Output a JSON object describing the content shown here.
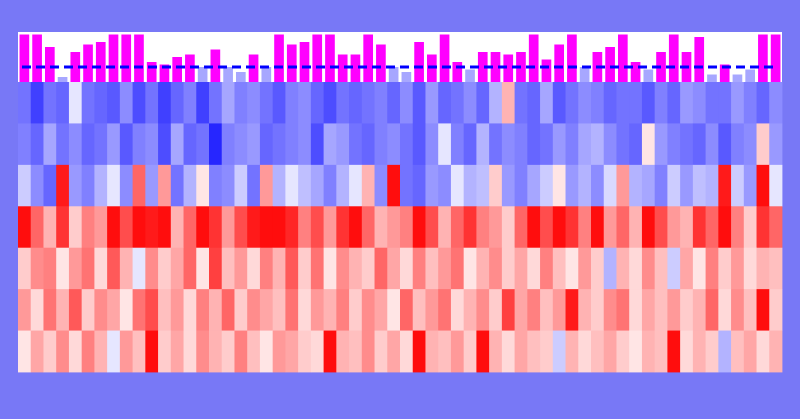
{
  "chart_data": [
    {
      "type": "bar",
      "title": "",
      "xlabel": "",
      "ylabel": "",
      "ylim": [
        0,
        1
      ],
      "grid": false,
      "legend": "none",
      "categories_count": 60,
      "values": [
        0.95,
        0.95,
        0.7,
        0.1,
        0.6,
        0.75,
        0.8,
        0.95,
        0.95,
        0.95,
        0.4,
        0.35,
        0.5,
        0.55,
        0.3,
        0.65,
        0.3,
        0.2,
        0.55,
        0.3,
        0.95,
        0.75,
        0.8,
        0.95,
        0.95,
        0.55,
        0.55,
        0.95,
        0.75,
        0.3,
        0.2,
        0.8,
        0.55,
        0.95,
        0.4,
        0.25,
        0.6,
        0.6,
        0.55,
        0.6,
        0.95,
        0.45,
        0.75,
        0.95,
        0.3,
        0.6,
        0.7,
        0.95,
        0.4,
        0.25,
        0.6,
        0.95,
        0.6,
        0.9,
        0.15,
        0.35,
        0.15,
        0.25,
        0.95,
        0.95
      ],
      "reference_line": 0.3,
      "colors": {
        "above": "#ff00ff",
        "below": "#a7a7ff",
        "line": "#0000ff",
        "background": "#ffffff"
      }
    },
    {
      "type": "heatmap",
      "title": "",
      "xlabel": "",
      "ylabel": "",
      "rows": 7,
      "cols": 60,
      "value_range": [
        -1,
        1
      ],
      "colormap": {
        "low": "#0000ff",
        "mid": "#ffffff",
        "high": "#ff0000"
      },
      "values": [
        [
          -0.55,
          -0.75,
          -0.55,
          -0.6,
          -0.1,
          -0.55,
          -0.6,
          -0.65,
          -0.45,
          -0.7,
          -0.55,
          -0.75,
          -0.6,
          -0.5,
          -0.75,
          -0.55,
          -0.35,
          -0.5,
          -0.45,
          -0.55,
          -0.65,
          -0.5,
          -0.45,
          -0.6,
          -0.7,
          -0.55,
          -0.6,
          -0.55,
          -0.5,
          -0.6,
          -0.45,
          -0.65,
          -0.4,
          -0.6,
          -0.55,
          -0.45,
          -0.6,
          -0.3,
          0.3,
          -0.55,
          -0.6,
          -0.35,
          -0.65,
          -0.55,
          -0.45,
          -0.5,
          -0.6,
          -0.55,
          -0.55,
          -0.65,
          -0.5,
          -0.6,
          -0.4,
          -0.45,
          -0.55,
          -0.55,
          -0.4,
          -0.5,
          -0.6,
          -0.45
        ],
        [
          -0.5,
          -0.6,
          -0.35,
          -0.55,
          -0.45,
          -0.6,
          -0.55,
          -0.4,
          -0.65,
          -0.5,
          -0.45,
          -0.7,
          -0.35,
          -0.6,
          -0.55,
          -0.85,
          -0.5,
          -0.45,
          -0.4,
          -0.6,
          -0.55,
          -0.5,
          -0.45,
          -0.7,
          -0.35,
          -0.4,
          -0.55,
          -0.6,
          -0.5,
          -0.45,
          -0.55,
          -0.65,
          -0.45,
          -0.1,
          -0.5,
          -0.6,
          -0.3,
          -0.55,
          -0.45,
          -0.5,
          -0.6,
          -0.55,
          -0.4,
          -0.5,
          -0.35,
          -0.3,
          -0.45,
          -0.55,
          -0.6,
          0.1,
          -0.4,
          -0.5,
          -0.55,
          -0.6,
          -0.45,
          -0.65,
          -0.5,
          -0.45,
          0.2,
          -0.4
        ],
        [
          -0.2,
          -0.45,
          -0.6,
          0.9,
          -0.4,
          -0.5,
          -0.3,
          -0.1,
          -0.45,
          0.6,
          -0.4,
          0.4,
          -0.55,
          -0.3,
          0.1,
          -0.5,
          -0.45,
          -0.2,
          -0.55,
          0.4,
          -0.3,
          -0.1,
          -0.25,
          -0.35,
          -0.5,
          -0.3,
          -0.1,
          0.3,
          -0.45,
          0.95,
          -0.55,
          -0.6,
          -0.4,
          -0.45,
          -0.1,
          -0.3,
          -0.25,
          0.2,
          -0.4,
          -0.5,
          -0.35,
          -0.2,
          0.1,
          -0.4,
          -0.3,
          -0.45,
          -0.15,
          0.4,
          -0.3,
          -0.35,
          -0.5,
          -0.2,
          -0.4,
          -0.25,
          -0.3,
          0.9,
          -0.2,
          -0.4,
          0.95,
          -0.1
        ],
        [
          0.95,
          0.6,
          0.3,
          0.8,
          0.2,
          0.5,
          0.4,
          0.95,
          0.7,
          0.95,
          0.9,
          0.95,
          0.3,
          0.6,
          0.95,
          0.8,
          0.4,
          0.7,
          0.9,
          0.95,
          0.95,
          0.85,
          0.5,
          0.7,
          0.4,
          0.8,
          0.95,
          0.6,
          0.3,
          0.4,
          0.5,
          0.95,
          0.7,
          0.3,
          0.6,
          0.8,
          0.5,
          0.4,
          0.2,
          0.6,
          0.95,
          0.7,
          0.95,
          0.8,
          0.5,
          0.95,
          0.4,
          0.6,
          0.3,
          0.95,
          0.7,
          0.4,
          0.3,
          0.8,
          0.6,
          0.95,
          0.5,
          0.2,
          0.8,
          0.6
        ],
        [
          0.2,
          0.45,
          0.5,
          0.1,
          0.4,
          0.55,
          0.15,
          0.65,
          0.3,
          -0.1,
          0.45,
          0.2,
          0.35,
          0.6,
          0.1,
          0.75,
          0.25,
          0.4,
          0.15,
          0.5,
          0.3,
          0.65,
          0.2,
          0.55,
          0.1,
          0.45,
          0.3,
          0.2,
          0.6,
          0.35,
          0.15,
          0.5,
          0.25,
          0.4,
          0.55,
          0.1,
          0.3,
          0.45,
          0.2,
          0.35,
          0.15,
          0.5,
          0.25,
          0.1,
          0.4,
          0.2,
          -0.3,
          0.3,
          0.15,
          0.45,
          0.25,
          -0.2,
          0.35,
          0.1,
          0.5,
          0.2,
          0.4,
          0.15,
          0.3,
          0.25
        ],
        [
          0.4,
          0.15,
          0.55,
          0.3,
          0.65,
          0.2,
          0.45,
          0.35,
          0.1,
          0.55,
          0.7,
          0.25,
          0.4,
          0.15,
          0.5,
          0.3,
          0.6,
          0.2,
          0.45,
          0.35,
          0.25,
          0.55,
          0.15,
          0.4,
          0.3,
          0.5,
          0.2,
          0.45,
          0.35,
          0.1,
          0.6,
          0.25,
          0.4,
          0.55,
          0.15,
          0.3,
          0.45,
          0.2,
          0.75,
          0.35,
          0.5,
          0.25,
          0.4,
          0.9,
          0.3,
          0.2,
          0.45,
          0.55,
          0.15,
          0.35,
          0.25,
          0.4,
          0.2,
          0.3,
          0.6,
          0.15,
          0.45,
          0.25,
          0.95,
          0.2
        ],
        [
          0.1,
          0.35,
          0.2,
          0.45,
          0.15,
          0.5,
          0.3,
          -0.1,
          0.4,
          0.25,
          0.95,
          0.2,
          0.35,
          0.15,
          0.45,
          0.3,
          0.2,
          0.5,
          0.25,
          0.1,
          0.4,
          0.35,
          0.2,
          0.15,
          0.95,
          0.3,
          0.25,
          0.45,
          0.2,
          0.35,
          0.15,
          0.95,
          0.3,
          0.25,
          0.4,
          0.2,
          0.95,
          0.3,
          0.15,
          0.35,
          0.25,
          0.2,
          -0.2,
          0.3,
          0.15,
          0.25,
          0.35,
          0.2,
          0.1,
          0.3,
          0.25,
          0.95,
          0.15,
          0.3,
          0.2,
          -0.3,
          0.25,
          0.35,
          0.15,
          0.3
        ]
      ]
    }
  ]
}
